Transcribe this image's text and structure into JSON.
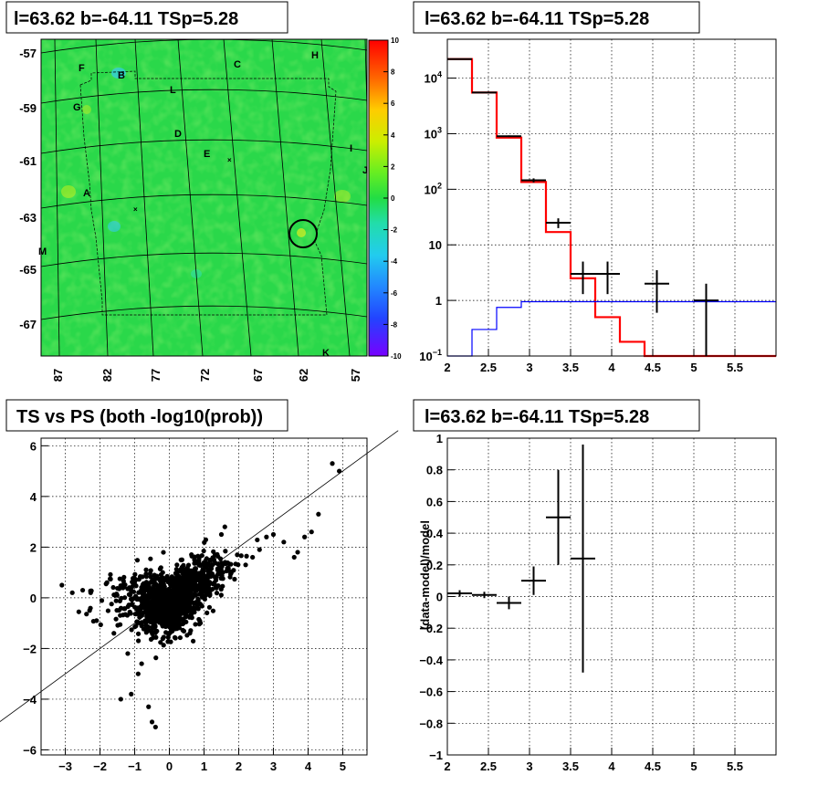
{
  "titles": {
    "top_left": "l=63.62 b=-64.11 TSp=5.28",
    "top_right": "l=63.62 b=-64.11 TSp=5.28",
    "bottom_left": "TS vs PS (both -log10(prob))",
    "bottom_right": "l=63.62 b=-64.11 TSp=5.28"
  },
  "chart_data": [
    {
      "type": "heatmap",
      "title": "l=63.62 b=-64.11 TSp=5.28",
      "y_ticks": [
        "-57",
        "-59",
        "-61",
        "-63",
        "-65",
        "-67"
      ],
      "x_ticks": [
        "87",
        "82",
        "77",
        "72",
        "67",
        "62",
        "57"
      ],
      "colorbar_ticks": [
        "10",
        "8",
        "6",
        "4",
        "2",
        "0",
        "-2",
        "-4",
        "-6",
        "-8",
        "-10"
      ],
      "zlim": [
        -10,
        10
      ],
      "region_labels": [
        "F",
        "B",
        "C",
        "H",
        "L",
        "G",
        "D",
        "E",
        "I",
        "J",
        "A",
        "M",
        "K"
      ],
      "colors": {
        "background": "#22dd44",
        "cold": "#33ccee",
        "hot": "#99ee22"
      }
    },
    {
      "type": "line",
      "title": "l=63.62 b=-64.11 TSp=5.28",
      "x_ticks": [
        "2",
        "2.5",
        "3",
        "3.5",
        "4",
        "4.5",
        "5",
        "5.5"
      ],
      "y_ticks": [
        "10^4",
        "10^3",
        "10^2",
        "10",
        "1",
        "10^-1"
      ],
      "xlim": [
        2,
        6
      ],
      "ylim": [
        0.1,
        50000
      ],
      "yscale": "log",
      "series": [
        {
          "kind": "step",
          "color": "#ff0000",
          "edges": [
            2,
            2.3,
            2.6,
            2.9,
            3.2,
            3.5,
            3.8,
            4.1,
            4.4,
            6
          ],
          "values": [
            22000,
            5500,
            850,
            135,
            17,
            2.5,
            0.5,
            0.18,
            0.1
          ]
        },
        {
          "kind": "step",
          "color": "#0000ff",
          "edges": [
            2,
            2.3,
            2.6,
            2.9,
            6
          ],
          "values": [
            0.05,
            0.3,
            0.75,
            0.95
          ]
        },
        {
          "kind": "errorbar",
          "color": "#000000",
          "points": [
            {
              "x": 2.15,
              "y": 22000,
              "xerr": 0.15,
              "ylo": 21500,
              "yhi": 22500
            },
            {
              "x": 2.45,
              "y": 5500,
              "xerr": 0.15,
              "ylo": 5400,
              "yhi": 5600
            },
            {
              "x": 2.75,
              "y": 900,
              "xerr": 0.15,
              "ylo": 870,
              "yhi": 930
            },
            {
              "x": 3.05,
              "y": 145,
              "xerr": 0.15,
              "ylo": 133,
              "yhi": 157
            },
            {
              "x": 3.35,
              "y": 25,
              "xerr": 0.15,
              "ylo": 20,
              "yhi": 30
            },
            {
              "x": 3.65,
              "y": 3,
              "xerr": 0.15,
              "ylo": 1.3,
              "yhi": 5
            },
            {
              "x": 3.95,
              "y": 3,
              "xerr": 0.15,
              "ylo": 1.3,
              "yhi": 5
            },
            {
              "x": 4.55,
              "y": 2,
              "xerr": 0.15,
              "ylo": 0.6,
              "yhi": 3.5
            },
            {
              "x": 5.15,
              "y": 1,
              "xerr": 0.15,
              "ylo": 0.1,
              "yhi": 2
            }
          ]
        }
      ]
    },
    {
      "type": "scatter",
      "title": "TS vs PS (both -log10(prob))",
      "x_ticks": [
        "-3",
        "-2",
        "-1",
        "0",
        "1",
        "2",
        "3",
        "4",
        "5"
      ],
      "y_ticks": [
        "6",
        "4",
        "2",
        "0",
        "-2",
        "-4",
        "-6"
      ],
      "xlim": [
        -3.7,
        5.7
      ],
      "ylim": [
        -6.2,
        6.3
      ],
      "reference_line": {
        "slope": 1,
        "intercept": 0
      },
      "outlier_points": [
        [
          4.9,
          5.0
        ],
        [
          4.7,
          5.3
        ],
        [
          4.3,
          3.3
        ],
        [
          4.1,
          2.6
        ],
        [
          3.9,
          2.4
        ],
        [
          3.7,
          1.8
        ],
        [
          3.6,
          1.6
        ],
        [
          3.3,
          2.2
        ],
        [
          3.0,
          2.5
        ],
        [
          2.8,
          2.4
        ],
        [
          2.6,
          1.9
        ],
        [
          2.4,
          1.6
        ],
        [
          2.2,
          1.3
        ],
        [
          1.6,
          2.8
        ],
        [
          1.5,
          2.5
        ],
        [
          -3.1,
          0.5
        ],
        [
          -2.8,
          0.2
        ],
        [
          -2.3,
          -0.5
        ],
        [
          -2.1,
          -0.9
        ],
        [
          -1.6,
          -1.4
        ],
        [
          -1.2,
          -2.2
        ],
        [
          -1.4,
          -4.0
        ],
        [
          -1.1,
          -3.8
        ],
        [
          -0.9,
          -3.0
        ],
        [
          -0.6,
          -4.3
        ],
        [
          -0.5,
          -4.9
        ],
        [
          -0.4,
          -5.1
        ],
        [
          -0.8,
          -2.6
        ],
        [
          -1.8,
          0.6
        ],
        [
          -2.5,
          0.3
        ]
      ]
    },
    {
      "type": "scatter",
      "title": "l=63.62 b=-64.11 TSp=5.28",
      "ylabel": "(data-model)/model",
      "x_ticks": [
        "2",
        "2.5",
        "3",
        "3.5",
        "4",
        "4.5",
        "5",
        "5.5"
      ],
      "y_ticks": [
        "1",
        "0.8",
        "0.6",
        "0.4",
        "0.2",
        "0",
        "-0.2",
        "-0.4",
        "-0.6",
        "-0.8",
        "-1"
      ],
      "xlim": [
        2,
        6
      ],
      "ylim": [
        -1,
        1
      ],
      "points": [
        {
          "x": 2.15,
          "y": 0.02,
          "xerr": 0.15,
          "yerr": 0.02
        },
        {
          "x": 2.45,
          "y": 0.01,
          "xerr": 0.15,
          "yerr": 0.02
        },
        {
          "x": 2.75,
          "y": -0.04,
          "xerr": 0.15,
          "yerr": 0.04
        },
        {
          "x": 3.05,
          "y": 0.1,
          "xerr": 0.15,
          "yerr": 0.09
        },
        {
          "x": 3.35,
          "y": 0.5,
          "xerr": 0.15,
          "yerr": 0.3
        },
        {
          "x": 3.65,
          "y": 0.24,
          "xerr": 0.15,
          "yerr": 0.72
        }
      ]
    }
  ]
}
